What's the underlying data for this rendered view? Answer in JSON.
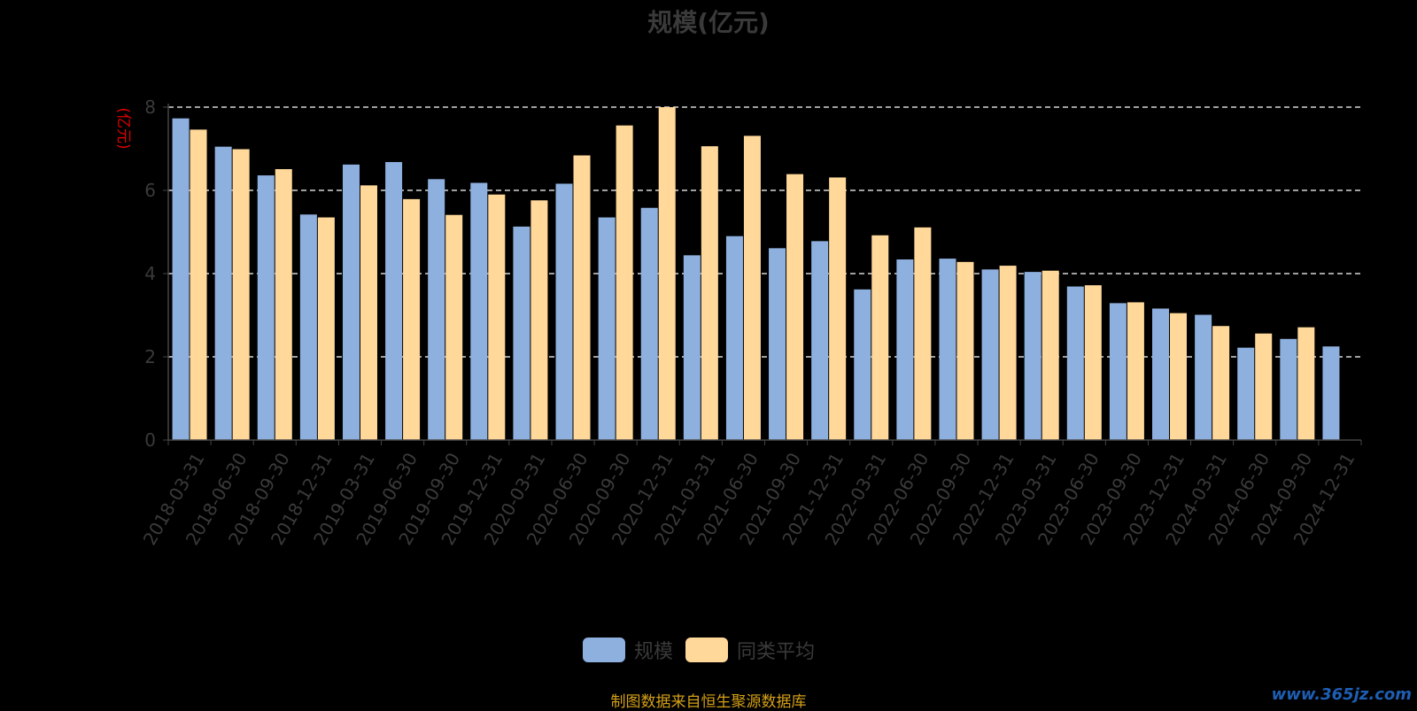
{
  "chart_data": {
    "type": "bar",
    "title": "规模(亿元)",
    "ylabel": "(亿元)",
    "xlabel": "",
    "ylim": [
      0,
      8
    ],
    "yticks": [
      0,
      2,
      4,
      6,
      8
    ],
    "grid": true,
    "legend_position": "bottom",
    "categories": [
      "2018-03-31",
      "2018-06-30",
      "2018-09-30",
      "2018-12-31",
      "2019-03-31",
      "2019-06-30",
      "2019-09-30",
      "2019-12-31",
      "2020-03-31",
      "2020-06-30",
      "2020-09-30",
      "2020-12-31",
      "2021-03-31",
      "2021-06-30",
      "2021-09-30",
      "2021-12-31",
      "2022-03-31",
      "2022-06-30",
      "2022-09-30",
      "2022-12-31",
      "2023-03-31",
      "2023-06-30",
      "2023-09-30",
      "2023-12-31",
      "2024-03-31",
      "2024-06-30",
      "2024-09-30",
      "2024-12-31"
    ],
    "series": [
      {
        "name": "规模",
        "color": "#8eb0de",
        "values": [
          7.73,
          7.05,
          6.36,
          5.42,
          6.62,
          6.68,
          6.27,
          6.18,
          5.13,
          6.16,
          5.35,
          5.58,
          4.44,
          4.9,
          4.61,
          4.78,
          3.62,
          4.34,
          4.36,
          4.1,
          4.04,
          3.69,
          3.29,
          3.16,
          3.01,
          2.22,
          2.43,
          2.25
        ]
      },
      {
        "name": "同类平均",
        "color": "#ffd89a",
        "values": [
          7.46,
          6.99,
          6.51,
          5.35,
          6.12,
          5.79,
          5.41,
          5.9,
          5.76,
          6.84,
          7.56,
          8.0,
          7.06,
          7.31,
          6.39,
          6.31,
          4.92,
          5.11,
          4.28,
          4.19,
          4.07,
          3.72,
          3.31,
          3.05,
          2.74,
          2.56,
          2.71,
          null
        ]
      }
    ]
  },
  "source": "制图数据来自恒生聚源数据库",
  "watermark": "www.365jz.com",
  "colors": {
    "axis": "#444444",
    "grid": "#ffffff",
    "tick_text": "#3a3a3a",
    "ylabel": "#e00000",
    "source": "#d4a017"
  }
}
